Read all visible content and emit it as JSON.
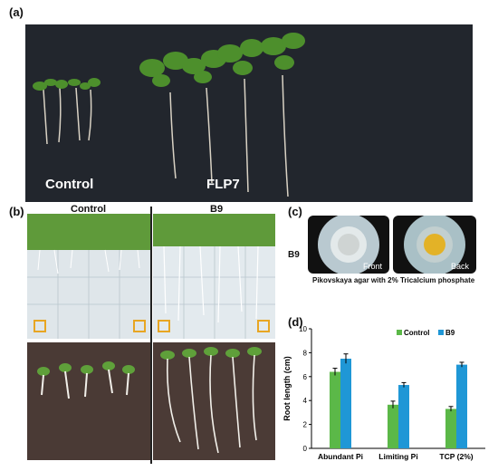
{
  "panels": {
    "a": {
      "letter": "(a)",
      "labels": {
        "left": "Control",
        "right": "FLP7"
      }
    },
    "b": {
      "letter": "(b)",
      "labels": {
        "left": "Control",
        "right": "B9"
      }
    },
    "c": {
      "letter": "(c)",
      "row_label": "B9",
      "dish_front": "Front",
      "dish_back": "Back",
      "caption": "Pikovskaya agar with 2% Tricalcium phosphate"
    },
    "d": {
      "letter": "(d)"
    }
  },
  "colors": {
    "control": "#5bb848",
    "b9": "#1f97d6",
    "backdrop": "#22262d"
  },
  "chart_data": {
    "type": "bar",
    "title": "",
    "xlabel": "",
    "ylabel": "Root length (cm)",
    "categories": [
      "Abundant Pi",
      "Limiting Pi",
      "TCP (2%)"
    ],
    "series": [
      {
        "name": "Control",
        "values": [
          6.4,
          3.65,
          3.3
        ],
        "errors": [
          0.3,
          0.3,
          0.2
        ]
      },
      {
        "name": "B9",
        "values": [
          7.5,
          5.3,
          7.0
        ],
        "errors": [
          0.4,
          0.2,
          0.2
        ]
      }
    ],
    "ylim": [
      0,
      10
    ],
    "yticks": [
      0,
      2,
      4,
      6,
      8,
      10
    ],
    "legend": "top-right",
    "grid": false
  }
}
